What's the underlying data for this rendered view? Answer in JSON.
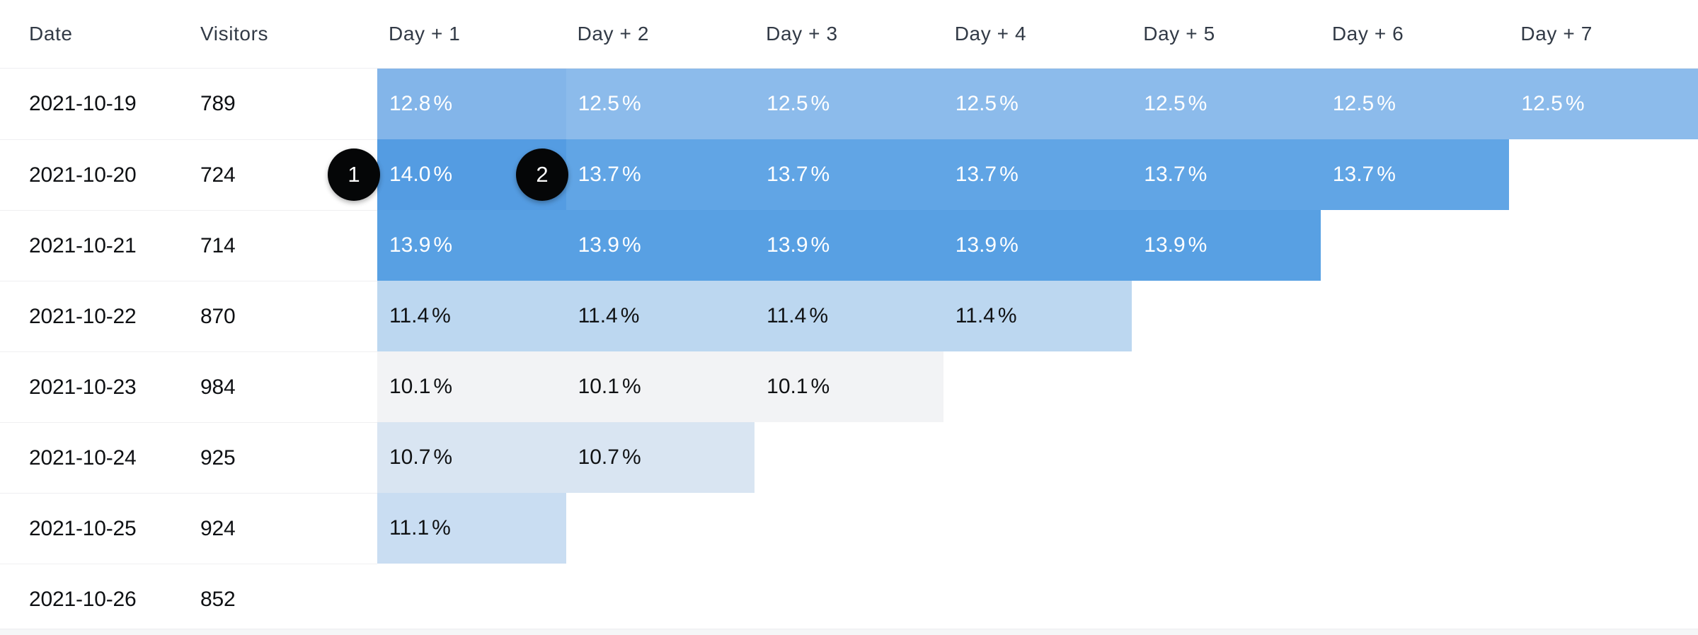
{
  "table": {
    "columns": [
      {
        "label": "Date"
      },
      {
        "label": "Visitors"
      },
      {
        "label": "Day + 1"
      },
      {
        "label": "Day + 2"
      },
      {
        "label": "Day + 3"
      },
      {
        "label": "Day + 4"
      },
      {
        "label": "Day + 5"
      },
      {
        "label": "Day + 6"
      },
      {
        "label": "Day + 7"
      }
    ],
    "rows": [
      {
        "date": "2021-10-19",
        "visitors": "789",
        "cells": [
          {
            "value": "12.8%",
            "bg": "#83B5E9",
            "fg": "#FFFFFF"
          },
          {
            "value": "12.5%",
            "bg": "#8CBBEB",
            "fg": "#FFFFFF"
          },
          {
            "value": "12.5%",
            "bg": "#8CBBEB",
            "fg": "#FFFFFF"
          },
          {
            "value": "12.5%",
            "bg": "#8CBBEB",
            "fg": "#FFFFFF"
          },
          {
            "value": "12.5%",
            "bg": "#8CBBEB",
            "fg": "#FFFFFF"
          },
          {
            "value": "12.5%",
            "bg": "#8CBBEB",
            "fg": "#FFFFFF"
          },
          {
            "value": "12.5%",
            "bg": "#8CBBEB",
            "fg": "#FFFFFF"
          }
        ]
      },
      {
        "date": "2021-10-20",
        "visitors": "724",
        "cells": [
          {
            "value": "14.0%",
            "bg": "#549CE2",
            "fg": "#FFFFFF"
          },
          {
            "value": "13.7%",
            "bg": "#61A5E5",
            "fg": "#FFFFFF"
          },
          {
            "value": "13.7%",
            "bg": "#61A5E5",
            "fg": "#FFFFFF"
          },
          {
            "value": "13.7%",
            "bg": "#61A5E5",
            "fg": "#FFFFFF"
          },
          {
            "value": "13.7%",
            "bg": "#61A5E5",
            "fg": "#FFFFFF"
          },
          {
            "value": "13.7%",
            "bg": "#61A5E5",
            "fg": "#FFFFFF"
          }
        ]
      },
      {
        "date": "2021-10-21",
        "visitors": "714",
        "cells": [
          {
            "value": "13.9%",
            "bg": "#58A0E3",
            "fg": "#FFFFFF"
          },
          {
            "value": "13.9%",
            "bg": "#58A0E3",
            "fg": "#FFFFFF"
          },
          {
            "value": "13.9%",
            "bg": "#58A0E3",
            "fg": "#FFFFFF"
          },
          {
            "value": "13.9%",
            "bg": "#58A0E3",
            "fg": "#FFFFFF"
          },
          {
            "value": "13.9%",
            "bg": "#58A0E3",
            "fg": "#FFFFFF"
          }
        ]
      },
      {
        "date": "2021-10-22",
        "visitors": "870",
        "cells": [
          {
            "value": "11.4%",
            "bg": "#BCD7F0",
            "fg": "#101214"
          },
          {
            "value": "11.4%",
            "bg": "#BCD7F0",
            "fg": "#101214"
          },
          {
            "value": "11.4%",
            "bg": "#BCD7F0",
            "fg": "#101214"
          },
          {
            "value": "11.4%",
            "bg": "#BCD7F0",
            "fg": "#101214"
          }
        ]
      },
      {
        "date": "2021-10-23",
        "visitors": "984",
        "cells": [
          {
            "value": "10.1%",
            "bg": "#F2F3F5",
            "fg": "#101214"
          },
          {
            "value": "10.1%",
            "bg": "#F2F3F5",
            "fg": "#101214"
          },
          {
            "value": "10.1%",
            "bg": "#F2F3F5",
            "fg": "#101214"
          }
        ]
      },
      {
        "date": "2021-10-24",
        "visitors": "925",
        "cells": [
          {
            "value": "10.7%",
            "bg": "#D9E5F2",
            "fg": "#101214"
          },
          {
            "value": "10.7%",
            "bg": "#D9E5F2",
            "fg": "#101214"
          }
        ]
      },
      {
        "date": "2021-10-25",
        "visitors": "924",
        "cells": [
          {
            "value": "11.1%",
            "bg": "#C9DDF2",
            "fg": "#101214"
          }
        ]
      },
      {
        "date": "2021-10-26",
        "visitors": "852",
        "cells": []
      }
    ]
  },
  "annotations": [
    {
      "label": "1"
    },
    {
      "label": "2"
    }
  ],
  "colors": {
    "header_text": "#323A46",
    "body_text": "#0E1013",
    "divider": "#EFEFF1",
    "badge_bg": "#050607",
    "badge_text": "#FFFFFF"
  }
}
